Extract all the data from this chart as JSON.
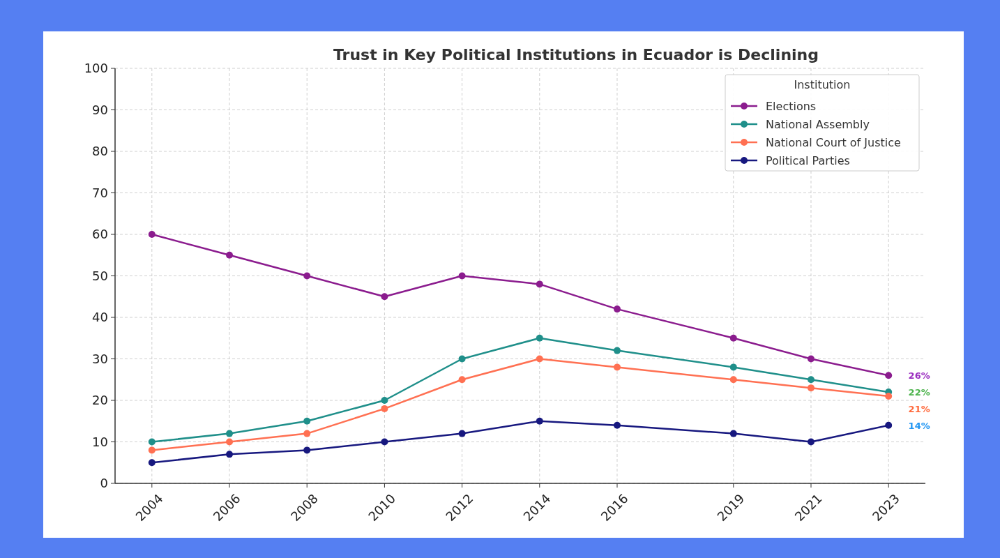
{
  "chart_data": {
    "type": "line",
    "title": "Trust in Key Political Institutions in Ecuador is Declining",
    "legend_title": "Institution",
    "x": [
      2004,
      2006,
      2008,
      2010,
      2012,
      2014,
      2016,
      2019,
      2021,
      2023
    ],
    "series": [
      {
        "name": "Elections",
        "color": "#8b1c8e",
        "values": [
          60,
          55,
          50,
          45,
          50,
          48,
          42,
          35,
          30,
          26
        ]
      },
      {
        "name": "National Assembly",
        "color": "#1f8f8a",
        "values": [
          10,
          12,
          15,
          20,
          30,
          35,
          32,
          28,
          25,
          22
        ]
      },
      {
        "name": "National Court of Justice",
        "color": "#ff7052",
        "values": [
          8,
          10,
          12,
          18,
          25,
          30,
          28,
          25,
          23,
          21
        ]
      },
      {
        "name": "Political Parties",
        "color": "#17187f",
        "values": [
          5,
          7,
          8,
          10,
          12,
          15,
          14,
          12,
          10,
          14
        ]
      }
    ],
    "xlim": [
      2003.05,
      2023.95
    ],
    "xticks": [
      2004,
      2006,
      2008,
      2010,
      2012,
      2014,
      2016,
      2019,
      2021,
      2023
    ],
    "ylim": [
      0,
      100
    ],
    "yticks": [
      0,
      10,
      20,
      30,
      40,
      50,
      60,
      70,
      80,
      90,
      100
    ],
    "annotations": [
      "26%",
      "22%",
      "21%",
      "14%"
    ],
    "grid": true,
    "legend": "top right",
    "marker": "circle",
    "line_style": "solid"
  }
}
